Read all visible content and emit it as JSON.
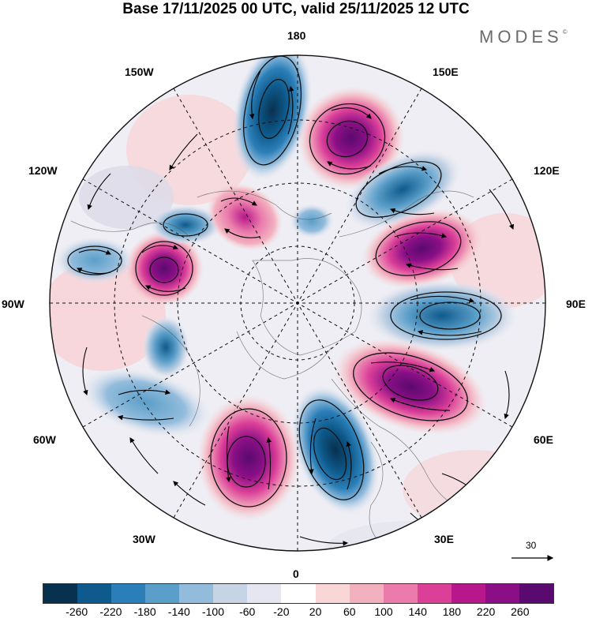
{
  "title": "Base 17/11/2025 00 UTC, valid 25/11/2025 12 UTC",
  "brand": {
    "name": "MODES",
    "mark": "©"
  },
  "longitude_labels": {
    "lon_180": "180",
    "lon_150W": "150W",
    "lon_150E": "150E",
    "lon_120W": "120W",
    "lon_120E": "120E",
    "lon_90W": "90W",
    "lon_90E": "90E",
    "lon_60W": "60W",
    "lon_60E": "60E",
    "lon_30W": "30W",
    "lon_30E": "30E",
    "lon_0": "0"
  },
  "reference_vector": {
    "label": "30"
  },
  "colorbar": {
    "colors": [
      "#08304f",
      "#0e5a8c",
      "#2b7fb8",
      "#5a9ec9",
      "#93bcdc",
      "#c6d4e6",
      "#e6e6f0",
      "#ffffff",
      "#f9d6d8",
      "#f3b1c0",
      "#ea7bab",
      "#db3f98",
      "#b8168b",
      "#8a0f86",
      "#5a0a6e"
    ],
    "tick_labels": [
      "-260",
      "-220",
      "-180",
      "-140",
      "-100",
      "-60",
      "-20",
      "20",
      "60",
      "100",
      "140",
      "180",
      "220",
      "260"
    ]
  },
  "anomaly_cells": [
    {
      "name": "low-north-pacific",
      "color": "#2b7fb8"
    },
    {
      "name": "high-kamchatka",
      "color": "#b8168b"
    },
    {
      "name": "low-east-siberia",
      "color": "#2b7fb8"
    },
    {
      "name": "high-central-siberia",
      "color": "#b8168b"
    },
    {
      "name": "low-west-siberia",
      "color": "#0e5a8c"
    },
    {
      "name": "high-ural",
      "color": "#b8168b"
    },
    {
      "name": "low-scandinavia",
      "color": "#0e5a8c"
    },
    {
      "name": "high-north-atlantic",
      "color": "#db3f98"
    },
    {
      "name": "low-mid-atlantic",
      "color": "#5a9ec9"
    },
    {
      "name": "low-labrador",
      "color": "#2b7fb8"
    },
    {
      "name": "high-canada",
      "color": "#b8168b"
    },
    {
      "name": "low-north-america",
      "color": "#5a9ec9"
    },
    {
      "name": "low-hudson",
      "color": "#2b7fb8"
    },
    {
      "name": "high-beaufort",
      "color": "#db3f98"
    },
    {
      "name": "low-eastern-pacific",
      "color": "#5a9ec9"
    }
  ]
}
